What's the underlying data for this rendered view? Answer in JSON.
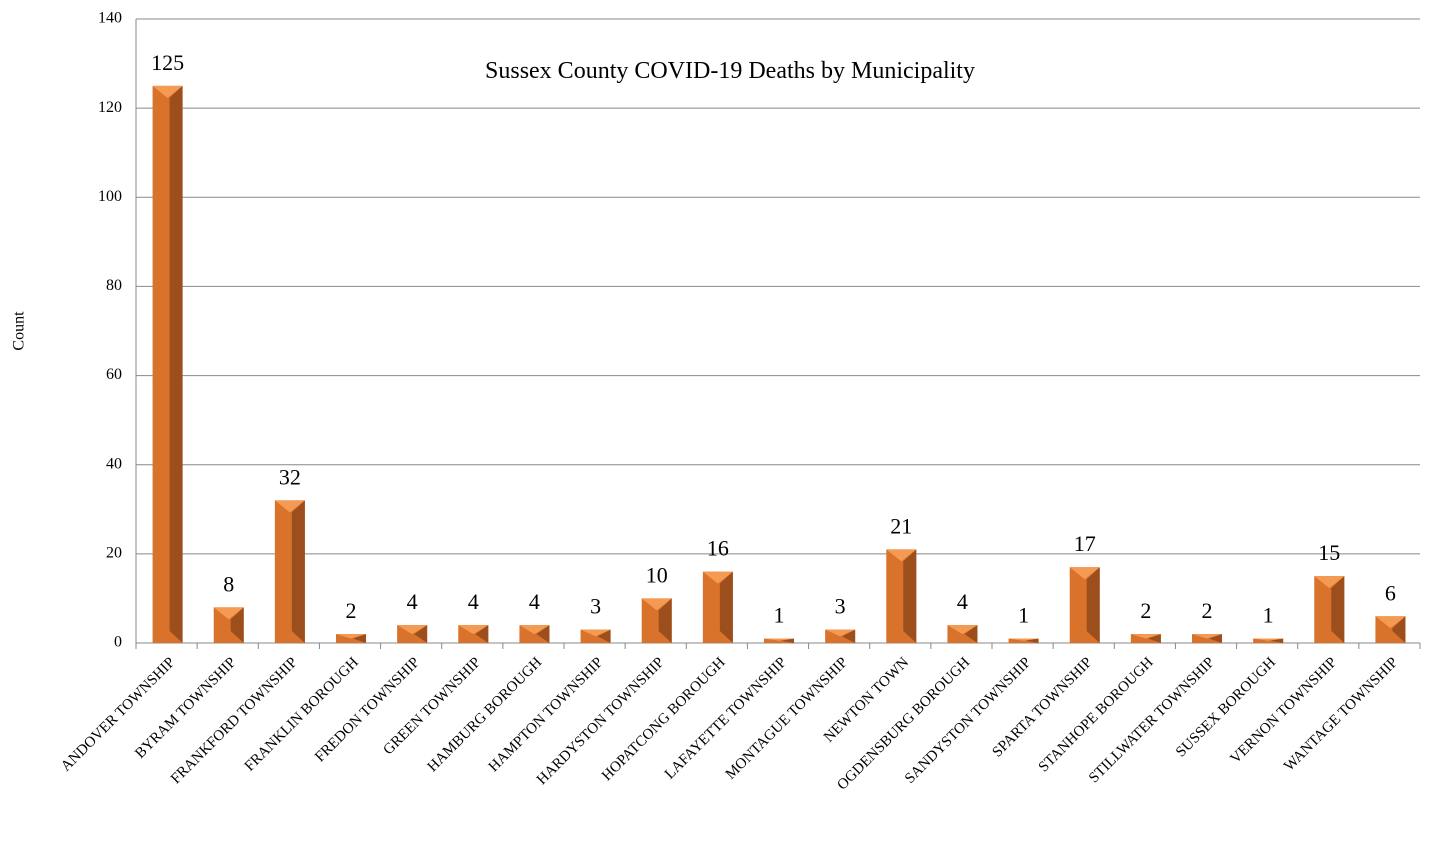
{
  "chart_data": {
    "type": "bar",
    "title": "Sussex County COVID-19 Deaths by Municipality",
    "y_label": "Count",
    "categories": [
      "ANDOVER TOWNSHIP",
      "BYRAM TOWNSHIP",
      "FRANKFORD TOWNSHIP",
      "FRANKLIN BOROUGH",
      "FREDON TOWNSHIP",
      "GREEN TOWNSHIP",
      "HAMBURG BOROUGH",
      "HAMPTON TOWNSHIP",
      "HARDYSTON TOWNSHIP",
      "HOPATCONG BOROUGH",
      "LAFAYETTE TOWNSHIP",
      "MONTAGUE TOWNSHIP",
      "NEWTON TOWN",
      "OGDENSBURG BOROUGH",
      "SANDYSTON TOWNSHIP",
      "SPARTA TOWNSHIP",
      "STANHOPE BOROUGH",
      "STILLWATER TOWNSHIP",
      "SUSSEX BOROUGH",
      "VERNON TOWNSHIP",
      "WANTAGE TOWNSHIP"
    ],
    "values": [
      125,
      8,
      32,
      2,
      4,
      4,
      4,
      3,
      10,
      16,
      1,
      3,
      21,
      4,
      1,
      17,
      2,
      2,
      1,
      15,
      6
    ],
    "color": "#d9732c",
    "ylim": [
      0,
      140
    ],
    "yticks": [
      0,
      20,
      40,
      60,
      80,
      100,
      120,
      140
    ],
    "grid": true
  }
}
